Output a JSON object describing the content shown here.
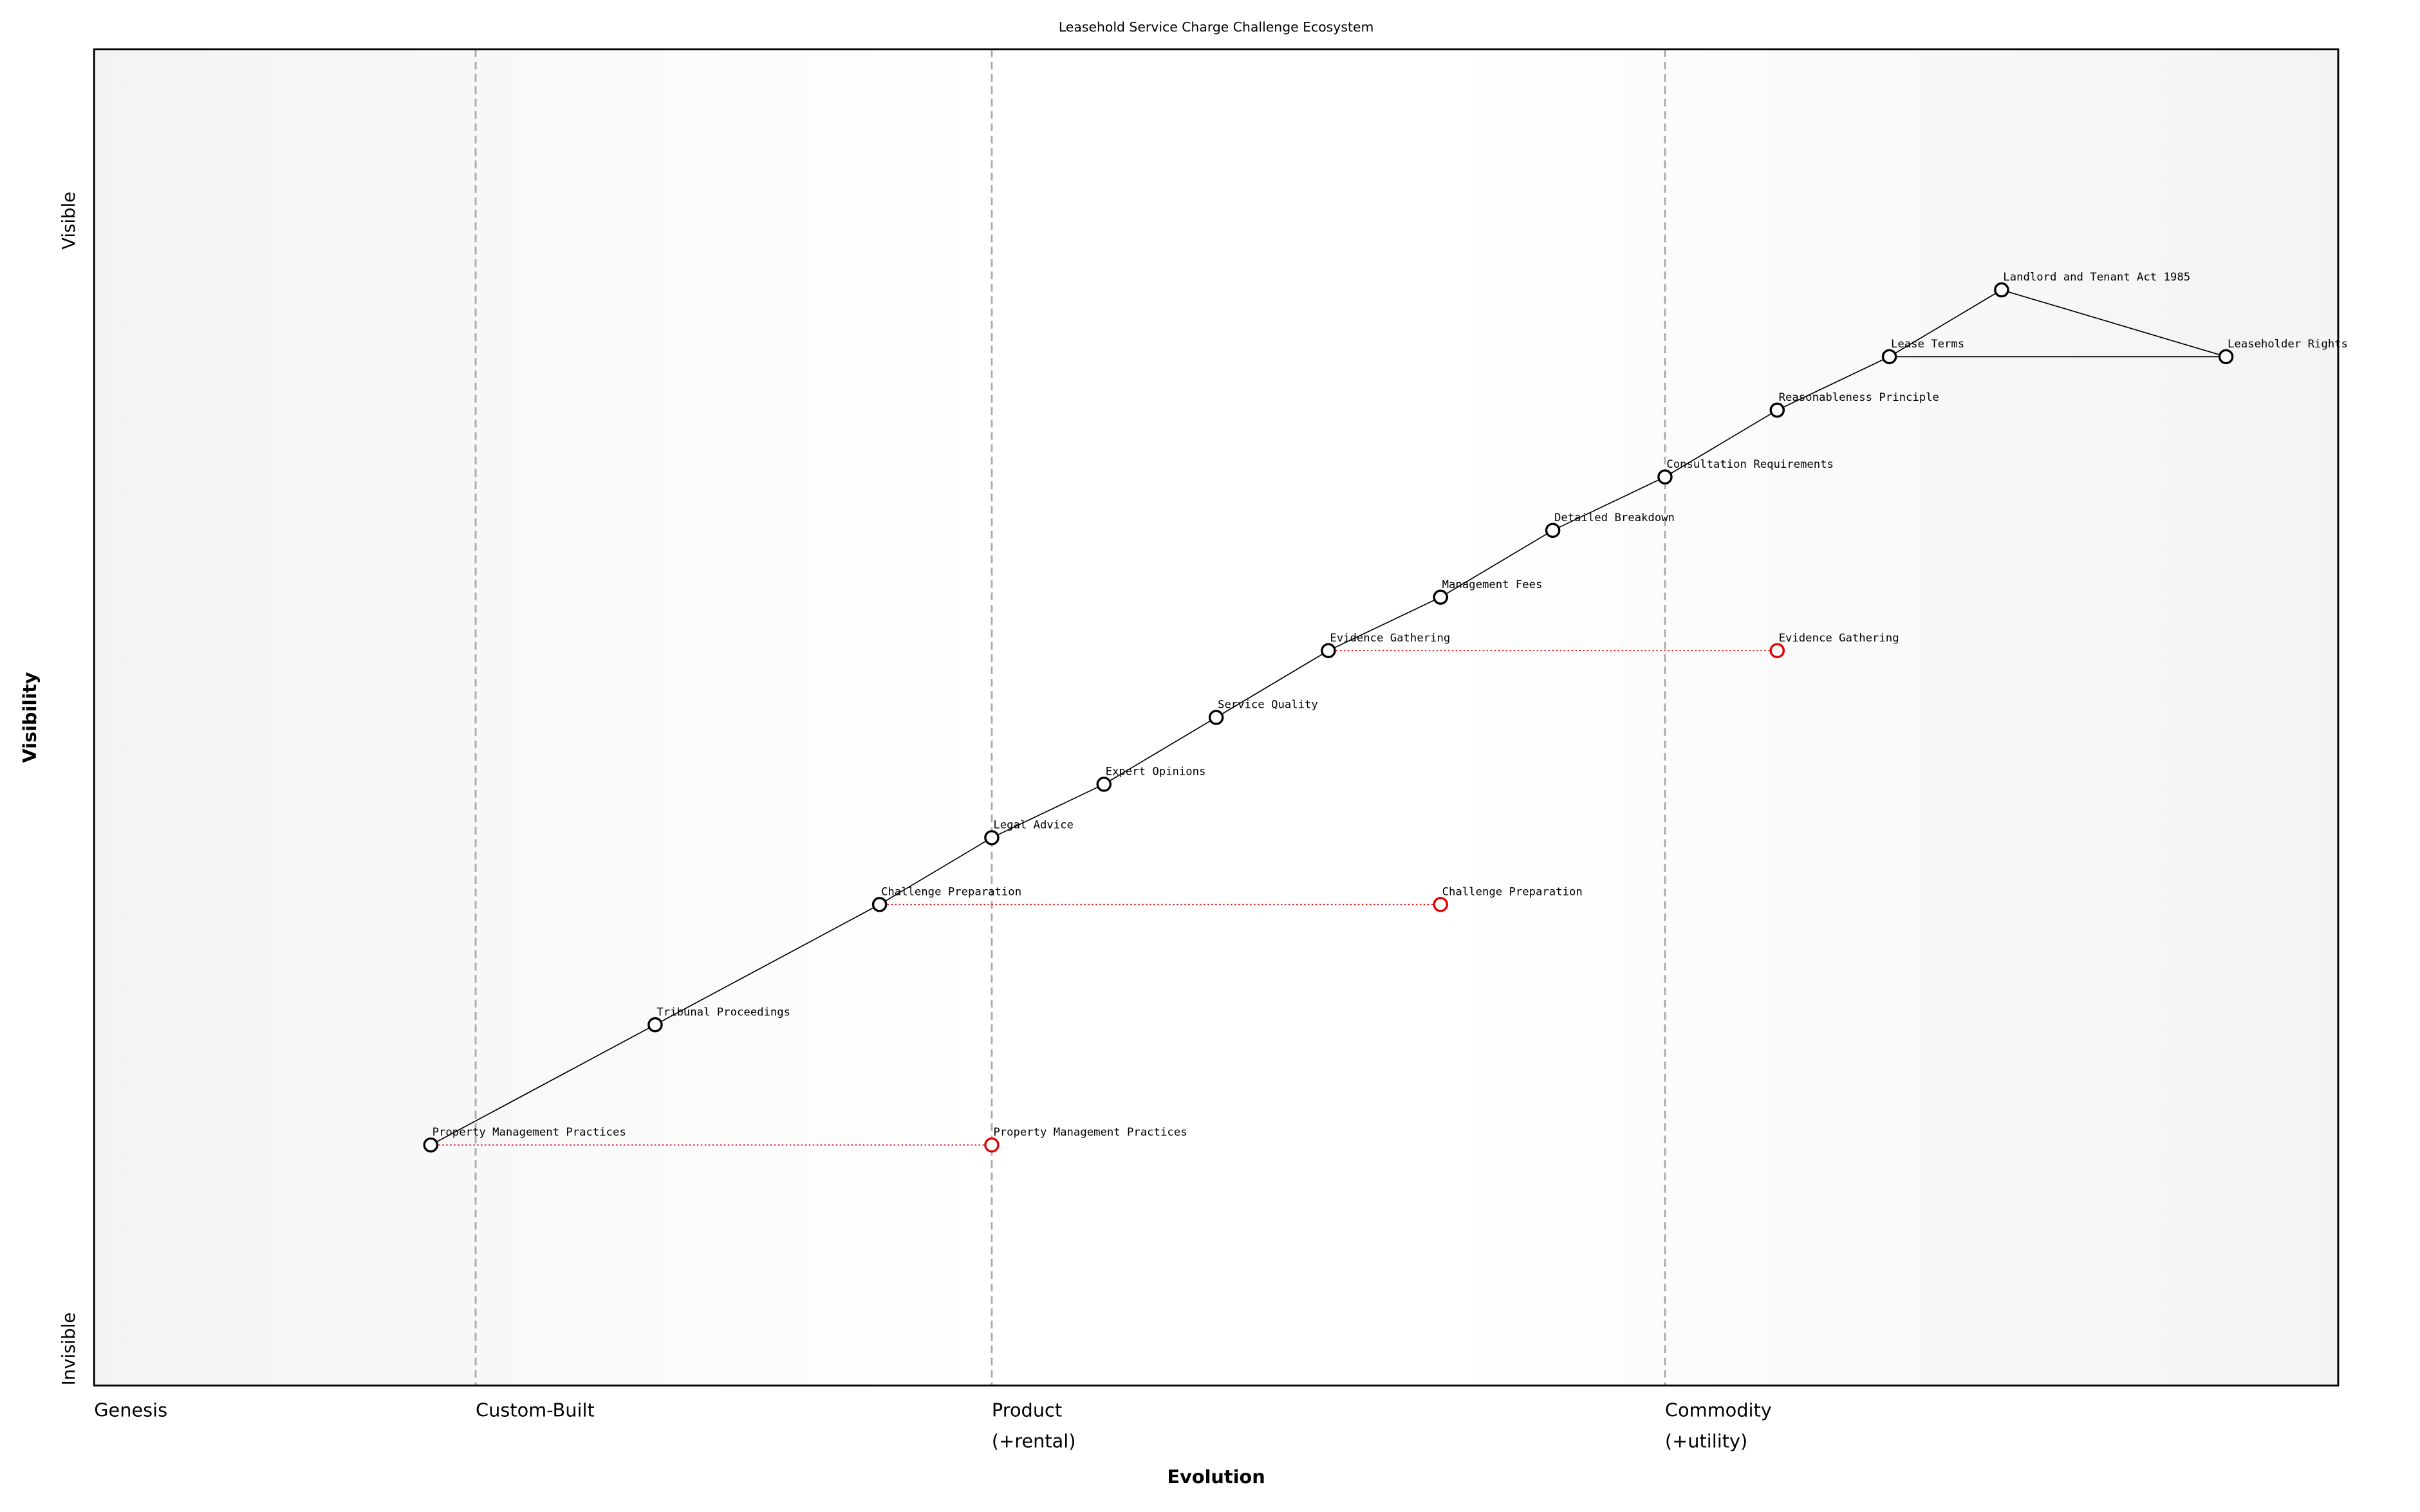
{
  "chart_data": {
    "type": "wardley",
    "title": "Leasehold Service Charge Challenge Ecosystem",
    "xlabel": "Evolution",
    "ylabel": "Visibility",
    "visibility_high": "Visible",
    "visibility_low": "Invisible",
    "xlim": [
      0,
      1
    ],
    "ylim": [
      0,
      1
    ],
    "xticks": [
      {
        "value": 0,
        "label": "Genesis"
      },
      {
        "value": 0.17,
        "label": "Custom-Built"
      },
      {
        "value": 0.4,
        "label": "Product\n(+rental)"
      },
      {
        "value": 0.7,
        "label": "Commodity\n(+utility)"
      }
    ],
    "components": [
      {
        "name": "Landlord and Tenant Act 1985",
        "x": 0.85,
        "y": 0.82
      },
      {
        "name": "Lease Terms",
        "x": 0.8,
        "y": 0.77
      },
      {
        "name": "Leaseholder Rights",
        "x": 0.95,
        "y": 0.77
      },
      {
        "name": "Reasonableness Principle",
        "x": 0.75,
        "y": 0.73
      },
      {
        "name": "Consultation Requirements",
        "x": 0.7,
        "y": 0.68
      },
      {
        "name": "Detailed Breakdown",
        "x": 0.65,
        "y": 0.64
      },
      {
        "name": "Management Fees",
        "x": 0.6,
        "y": 0.59
      },
      {
        "name": "Evidence Gathering",
        "x": 0.55,
        "y": 0.55
      },
      {
        "name": "Service Quality",
        "x": 0.5,
        "y": 0.5
      },
      {
        "name": "Expert Opinions",
        "x": 0.45,
        "y": 0.45
      },
      {
        "name": "Legal Advice",
        "x": 0.4,
        "y": 0.41
      },
      {
        "name": "Challenge Preparation",
        "x": 0.35,
        "y": 0.36
      },
      {
        "name": "Tribunal Proceedings",
        "x": 0.25,
        "y": 0.27
      },
      {
        "name": "Property Management Practices",
        "x": 0.15,
        "y": 0.18
      }
    ],
    "links": [
      [
        13,
        12
      ],
      [
        12,
        11
      ],
      [
        11,
        10
      ],
      [
        10,
        9
      ],
      [
        9,
        8
      ],
      [
        8,
        7
      ],
      [
        7,
        6
      ],
      [
        6,
        5
      ],
      [
        5,
        4
      ],
      [
        4,
        3
      ],
      [
        3,
        1
      ],
      [
        1,
        0
      ],
      [
        0,
        2
      ],
      [
        1,
        2
      ]
    ],
    "evolutions": [
      {
        "name": "Evidence Gathering",
        "x": 0.75,
        "y": 0.55,
        "color": "#e00000"
      },
      {
        "name": "Challenge Preparation",
        "x": 0.6,
        "y": 0.36,
        "color": "#e00000"
      },
      {
        "name": "Property Management Practices",
        "x": 0.4,
        "y": 0.18,
        "color": "#e00000"
      }
    ]
  }
}
